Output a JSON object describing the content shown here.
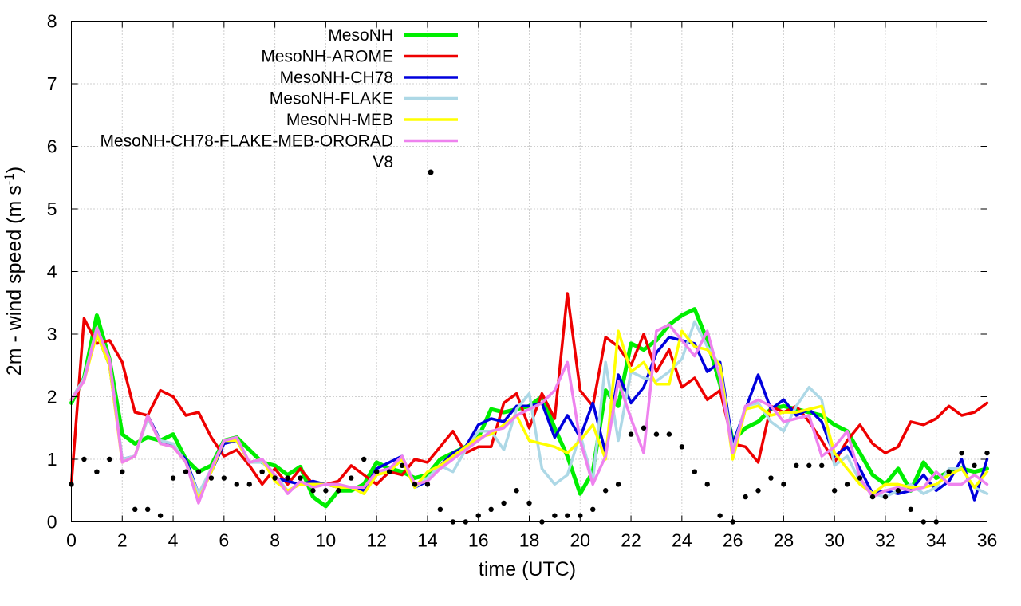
{
  "chart_data": {
    "type": "line",
    "title": "",
    "xlabel": "time (UTC)",
    "ylabel_main": "2m - wind speed  (m s",
    "ylabel_sup": "-1",
    "ylabel_end": ")",
    "xlim": [
      0,
      36
    ],
    "ylim": [
      0,
      8
    ],
    "xticks": [
      0,
      2,
      4,
      6,
      8,
      10,
      12,
      14,
      16,
      18,
      20,
      22,
      24,
      26,
      28,
      30,
      32,
      34,
      36
    ],
    "yticks": [
      0,
      1,
      2,
      3,
      4,
      5,
      6,
      7,
      8
    ],
    "grid": true,
    "legend_position": "top-center",
    "x": [
      0,
      0.5,
      1,
      1.5,
      2,
      2.5,
      3,
      3.5,
      4,
      4.5,
      5,
      5.5,
      6,
      6.5,
      7,
      7.5,
      8,
      8.5,
      9,
      9.5,
      10,
      10.5,
      11,
      11.5,
      12,
      12.5,
      13,
      13.5,
      14,
      14.5,
      15,
      15.5,
      16,
      16.5,
      17,
      17.5,
      18,
      18.5,
      19,
      19.5,
      20,
      20.5,
      21,
      21.5,
      22,
      22.5,
      23,
      23.5,
      24,
      24.5,
      25,
      25.5,
      26,
      26.5,
      27,
      27.5,
      28,
      28.5,
      29,
      29.5,
      30,
      30.5,
      31,
      31.5,
      32,
      32.5,
      33,
      33.5,
      34,
      34.5,
      35,
      35.5,
      36
    ],
    "series": [
      {
        "name": "MesoNH",
        "color": "#00ee00",
        "width": 5,
        "values": [
          1.9,
          2.3,
          3.3,
          2.6,
          1.4,
          1.25,
          1.35,
          1.3,
          1.4,
          1.0,
          0.8,
          0.9,
          1.3,
          1.35,
          1.15,
          0.95,
          0.9,
          0.75,
          0.88,
          0.4,
          0.25,
          0.5,
          0.5,
          0.6,
          0.95,
          0.85,
          0.8,
          0.7,
          0.75,
          1.0,
          1.1,
          1.2,
          1.35,
          1.8,
          1.75,
          1.8,
          1.85,
          2.0,
          1.5,
          1.05,
          0.45,
          0.8,
          2.1,
          1.85,
          2.85,
          2.75,
          2.9,
          3.15,
          3.3,
          3.4,
          2.9,
          2.2,
          1.3,
          1.5,
          1.6,
          1.8,
          1.85,
          1.8,
          1.75,
          1.7,
          1.55,
          1.45,
          1.1,
          0.75,
          0.6,
          0.85,
          0.5,
          0.95,
          0.7,
          0.8,
          0.85,
          0.8,
          0.85
        ]
      },
      {
        "name": "MesoNH-AROME",
        "color": "#ee0000",
        "width": 3.5,
        "values": [
          0.6,
          3.25,
          2.85,
          2.9,
          2.55,
          1.75,
          1.7,
          2.1,
          2.0,
          1.7,
          1.75,
          1.35,
          1.05,
          1.15,
          0.9,
          0.6,
          0.85,
          0.6,
          0.85,
          0.6,
          0.6,
          0.65,
          0.9,
          0.75,
          0.6,
          0.8,
          0.75,
          1.0,
          0.95,
          1.2,
          1.45,
          1.1,
          1.2,
          1.2,
          1.9,
          2.05,
          1.5,
          2.05,
          1.65,
          3.65,
          2.1,
          1.85,
          2.95,
          2.8,
          2.5,
          3.0,
          2.4,
          2.75,
          2.15,
          2.3,
          1.95,
          2.1,
          1.25,
          1.2,
          0.95,
          1.85,
          1.75,
          1.85,
          1.6,
          1.3,
          0.95,
          1.3,
          1.55,
          1.25,
          1.1,
          1.2,
          1.6,
          1.55,
          1.65,
          1.85,
          1.7,
          1.75,
          1.9
        ]
      },
      {
        "name": "MesoNH-CH78",
        "color": "#0000dd",
        "width": 3.5,
        "values": [
          1.95,
          2.3,
          3.0,
          2.5,
          1.0,
          1.05,
          1.7,
          1.3,
          1.2,
          1.0,
          0.45,
          0.8,
          1.25,
          1.3,
          0.95,
          1.0,
          0.7,
          0.65,
          0.6,
          0.65,
          0.6,
          0.55,
          0.55,
          0.5,
          0.85,
          0.95,
          1.05,
          0.55,
          0.65,
          0.9,
          1.1,
          1.2,
          1.55,
          1.65,
          1.6,
          1.85,
          1.85,
          1.9,
          1.35,
          1.7,
          1.35,
          1.9,
          1.1,
          2.35,
          1.9,
          2.15,
          2.7,
          2.95,
          2.9,
          2.85,
          2.4,
          2.55,
          1.25,
          1.8,
          2.35,
          1.8,
          1.95,
          1.7,
          1.8,
          1.6,
          1.05,
          1.2,
          0.85,
          0.45,
          0.5,
          0.45,
          0.5,
          0.75,
          0.5,
          0.65,
          1.0,
          0.35,
          1.0
        ]
      },
      {
        "name": "MesoNH-FLAKE",
        "color": "#add8e6",
        "width": 3.5,
        "values": [
          1.95,
          2.3,
          3.1,
          2.6,
          1.0,
          1.05,
          1.65,
          1.3,
          1.25,
          0.95,
          0.45,
          0.85,
          1.3,
          1.3,
          0.95,
          0.95,
          0.75,
          0.5,
          0.6,
          0.6,
          0.6,
          0.55,
          0.55,
          0.45,
          0.75,
          0.85,
          1.0,
          0.55,
          0.7,
          0.9,
          0.8,
          1.15,
          1.45,
          1.45,
          1.15,
          1.8,
          2.05,
          0.85,
          0.6,
          0.75,
          1.4,
          0.65,
          2.55,
          1.3,
          2.4,
          2.3,
          2.25,
          2.4,
          2.6,
          3.2,
          2.8,
          2.5,
          1.15,
          1.85,
          1.9,
          1.6,
          1.45,
          1.85,
          2.15,
          1.95,
          0.9,
          1.05,
          0.65,
          0.45,
          0.4,
          0.5,
          0.6,
          0.45,
          0.55,
          0.85,
          0.85,
          0.55,
          0.45
        ]
      },
      {
        "name": "MesoNH-MEB",
        "color": "#ffff00",
        "width": 3.5,
        "values": [
          1.95,
          2.25,
          3.0,
          2.5,
          0.95,
          1.05,
          1.7,
          1.25,
          1.2,
          0.95,
          0.35,
          0.8,
          1.3,
          1.3,
          0.95,
          1.0,
          0.65,
          0.5,
          0.6,
          0.6,
          0.6,
          0.55,
          0.55,
          0.45,
          0.75,
          0.8,
          1.0,
          0.55,
          0.8,
          0.9,
          1.05,
          1.2,
          1.35,
          1.4,
          1.55,
          1.7,
          1.3,
          1.25,
          1.2,
          1.1,
          1.3,
          1.55,
          1.0,
          3.05,
          2.4,
          2.55,
          2.2,
          2.2,
          3.05,
          2.8,
          2.75,
          2.5,
          1.0,
          1.8,
          1.85,
          1.7,
          1.75,
          1.75,
          1.8,
          1.85,
          1.1,
          0.85,
          0.6,
          0.45,
          0.6,
          0.6,
          0.55,
          0.55,
          0.6,
          0.75,
          0.85,
          0.55,
          0.8
        ]
      },
      {
        "name": "MesoNH-CH78-FLAKE-MEB-ORORAD",
        "color": "#ee82ee",
        "width": 3.5,
        "values": [
          1.95,
          2.25,
          3.1,
          2.6,
          0.95,
          1.05,
          1.7,
          1.25,
          1.2,
          0.95,
          0.3,
          0.85,
          1.3,
          1.35,
          0.95,
          1.0,
          0.75,
          0.45,
          0.65,
          0.55,
          0.6,
          0.6,
          0.55,
          0.55,
          0.8,
          0.85,
          1.05,
          0.6,
          0.65,
          0.85,
          1.0,
          1.15,
          1.3,
          1.45,
          1.5,
          1.7,
          1.8,
          1.9,
          2.1,
          2.55,
          1.3,
          0.6,
          1.05,
          2.25,
          1.65,
          1.1,
          3.05,
          3.15,
          2.9,
          2.65,
          3.05,
          2.3,
          1.1,
          1.85,
          1.95,
          1.85,
          1.6,
          1.65,
          1.7,
          1.05,
          1.2,
          1.45,
          0.7,
          0.4,
          0.5,
          0.55,
          0.5,
          0.55,
          0.8,
          0.6,
          0.6,
          0.75,
          0.6
        ]
      },
      {
        "name": "V8",
        "color": "#000000",
        "type": "points",
        "values": [
          0.6,
          1.0,
          0.8,
          1.0,
          0.8,
          0.2,
          0.2,
          0.1,
          0.7,
          0.8,
          0.8,
          0.7,
          0.7,
          0.6,
          0.6,
          0.8,
          0.7,
          0.7,
          0.7,
          0.5,
          0.5,
          0.5,
          0.7,
          1.0,
          0.8,
          0.8,
          0.9,
          0.6,
          0.6,
          0.2,
          0.0,
          0.0,
          0.1,
          0.2,
          0.3,
          0.5,
          0.3,
          0.0,
          0.1,
          0.1,
          0.1,
          0.2,
          0.5,
          0.6,
          1.4,
          1.5,
          1.4,
          1.4,
          1.2,
          0.8,
          0.6,
          0.1,
          0.0,
          0.4,
          0.5,
          0.7,
          0.6,
          0.9,
          0.9,
          0.9,
          0.5,
          0.6,
          0.7,
          0.4,
          0.4,
          0.5,
          0.2,
          0.0,
          0.0,
          0.8,
          1.1,
          0.9,
          1.1
        ]
      }
    ]
  }
}
